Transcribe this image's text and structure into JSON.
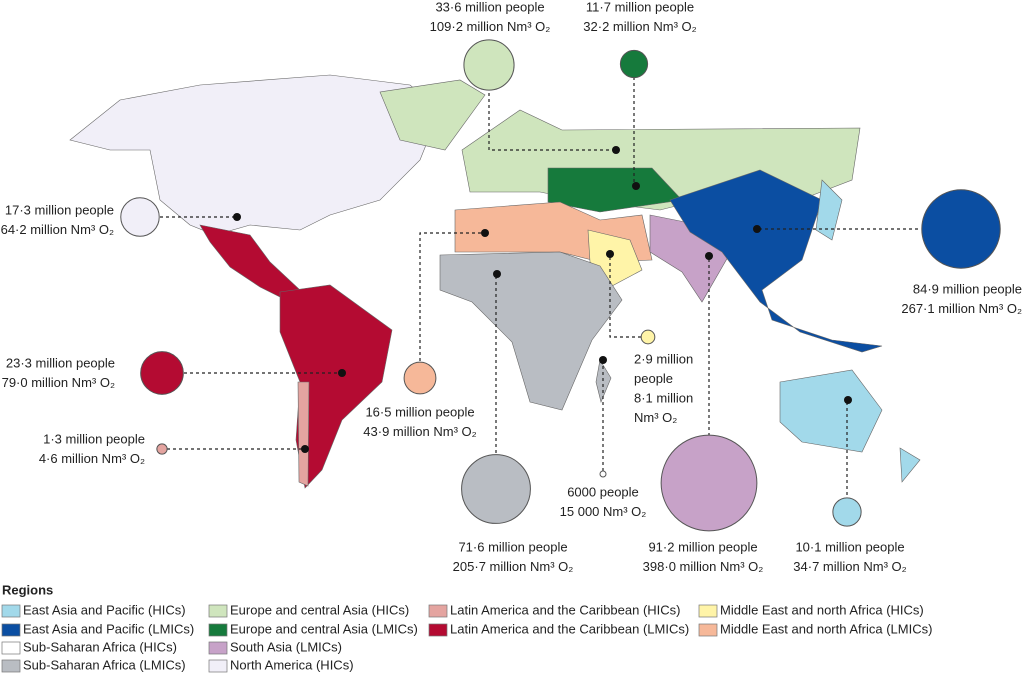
{
  "bubbles": [
    {
      "lines": [
        "33·6 million people",
        "109·2 million Nm³ O₂"
      ],
      "oxygen": 109.2,
      "color": "#cfe5bd"
    },
    {
      "lines": [
        "11·7 million people",
        "32·2 million Nm³ O₂"
      ],
      "oxygen": 32.2,
      "color": "#167a3c"
    },
    {
      "lines": [
        "17·3 million people",
        "64·2 million Nm³ O₂"
      ],
      "oxygen": 64.2,
      "color": "#f1eff8"
    },
    {
      "lines": [
        "23·3 million people",
        "79·0 million Nm³ O₂"
      ],
      "oxygen": 79.0,
      "color": "#b40b32"
    },
    {
      "lines": [
        "1·3 million people",
        "4·6 million Nm³ O₂"
      ],
      "oxygen": 4.6,
      "color": "#e4a4a0"
    },
    {
      "lines": [
        "16·5 million people",
        "43·9 million Nm³ O₂"
      ],
      "oxygen": 43.9,
      "color": "#f6b899"
    },
    {
      "lines": [
        "2·9 million",
        "people",
        "8·1 million",
        "Nm³ O₂"
      ],
      "oxygen": 8.1,
      "color": "#fff4a8"
    },
    {
      "lines": [
        "6000 people",
        "15 000 Nm³ O₂"
      ],
      "oxygen": 0.015,
      "color": "#ffffff"
    },
    {
      "lines": [
        "71·6 million people",
        "205·7 million Nm³ O₂"
      ],
      "oxygen": 205.7,
      "color": "#b9bdc3"
    },
    {
      "lines": [
        "91·2 million people",
        "398·0 million Nm³ O₂"
      ],
      "oxygen": 398.0,
      "color": "#c7a2c8"
    },
    {
      "lines": [
        "84·9 million people",
        "267·1 million Nm³ O₂"
      ],
      "oxygen": 267.1,
      "color": "#0b4ea2"
    },
    {
      "lines": [
        "10·1 million people",
        "34·7 million Nm³ O₂"
      ],
      "oxygen": 34.7,
      "color": "#a2d9ea"
    }
  ],
  "legend": {
    "title": "Regions",
    "items": [
      {
        "label": "East Asia and Pacific (HICs)",
        "color": "#a2d9ea"
      },
      {
        "label": "East Asia and Pacific (LMICs)",
        "color": "#0b4ea2"
      },
      {
        "label": "Sub-Saharan Africa (HICs)",
        "color": "#ffffff"
      },
      {
        "label": "Sub-Saharan Africa (LMICs)",
        "color": "#b9bdc3"
      },
      {
        "label": "Europe and central Asia (HICs)",
        "color": "#cfe5bd"
      },
      {
        "label": "Europe and central Asia (LMICs)",
        "color": "#167a3c"
      },
      {
        "label": "South Asia (LMICs)",
        "color": "#c7a2c8"
      },
      {
        "label": "North America (HICs)",
        "color": "#f1eff8"
      },
      {
        "label": "Latin America and the Caribbean (HICs)",
        "color": "#e4a4a0"
      },
      {
        "label": "Latin America and the Caribbean (LMICs)",
        "color": "#b40b32"
      },
      {
        "label": "Middle East and north Africa (HICs)",
        "color": "#fff4a8"
      },
      {
        "label": "Middle East and north Africa (LMICs)",
        "color": "#f6b899"
      }
    ]
  }
}
